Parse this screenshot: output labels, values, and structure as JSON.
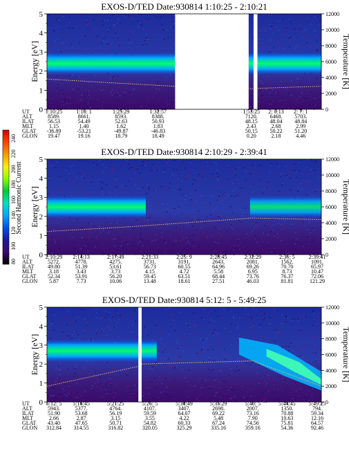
{
  "colorbar": {
    "label": "Second Harmonic Current",
    "ticks": [
      "240",
      "220",
      "200",
      "180",
      "160",
      "140",
      "120",
      "100",
      "80"
    ],
    "colors": [
      "#d60000",
      "#ff4400",
      "#ff9900",
      "#ffee00",
      "#88ff00",
      "#00cc33",
      "#00e0c0",
      "#00a8ff",
      "#0050f0",
      "#1a1aa0",
      "#3a0a6a",
      "#000000"
    ]
  },
  "chart_data": [
    {
      "type": "heatmap",
      "title": "EXOS-D/TED   Date:930814   1:10:25 - 2:10:21",
      "ylabel": "Energy [eV]",
      "ylabel_right": "Temperature [K]",
      "ylim": [
        0,
        5
      ],
      "ylim_right": [
        0,
        12000
      ],
      "yticks": [
        "0",
        "1",
        "2",
        "3",
        "4",
        "5"
      ],
      "yticks_right": [
        "0",
        "2000",
        "4000",
        "6000",
        "8000",
        "10000",
        "12000"
      ],
      "gaps": [
        [
          0.467,
          0.735
        ],
        [
          0.753,
          0.767
        ]
      ],
      "band": {
        "center_ev": 2.4,
        "width_ev": 0.6,
        "intensity": 160
      },
      "temperature_trace": {
        "x": [
          0,
          0.25,
          0.467,
          0.735,
          1.0
        ],
        "t_k": [
          3800,
          3300,
          2900,
          2600,
          2900
        ]
      },
      "ephemeris": {
        "row_labels": [
          "UT",
          "ALT",
          "ILAT",
          "MLT",
          "GLAT",
          "GLON"
        ],
        "columns": [
          [
            "1:10:25",
            "8589.",
            "56.53",
            "1.15",
            "-36.89",
            "19.47"
          ],
          [
            "1:18: 1",
            "8661.",
            "54.49",
            "1.40",
            "-53.21",
            "19.16"
          ],
          [
            "1:25:29",
            "8593.",
            "52.63",
            "1.62",
            "-49.87",
            "18.79"
          ],
          [
            "1:32:57",
            "8388.",
            "50.93",
            "1.83",
            "-46.83",
            "18.49"
          ],
          [
            "1:53:25",
            "7120.",
            "48.15",
            "2.43",
            "50.15",
            "0.20"
          ],
          [
            "2: 0:13",
            "6468.",
            "48.04",
            "2.68",
            "50.22",
            "2.18"
          ],
          [
            "2: 7: 1",
            "5703.",
            "48.84",
            "2.99",
            "51.20",
            "4.46"
          ]
        ]
      }
    },
    {
      "type": "heatmap",
      "title": "EXOS-D/TED   Date:930814   2:10:29 - 2:39:41",
      "ylabel": "Energy [eV]",
      "ylabel_right": "Temperature [K]",
      "ylim": [
        0,
        5
      ],
      "ylim_right": [
        0,
        12000
      ],
      "yticks": [
        "0",
        "1",
        "2",
        "3",
        "4",
        "5"
      ],
      "yticks_right": [
        "0",
        "2000",
        "4000",
        "6000",
        "8000",
        "10000",
        "12000"
      ],
      "gaps": [],
      "band": {
        "center_ev": 2.5,
        "width_ev": 0.6,
        "intensity": 160
      },
      "temperature_trace": {
        "x": [
          0,
          0.3,
          0.75,
          1.0
        ],
        "t_k": [
          2900,
          3500,
          4600,
          4400
        ]
      },
      "ephemeris": {
        "row_labels": [
          "UT",
          "ALT",
          "ILAT",
          "MLT",
          "GLAT",
          "GLON"
        ],
        "columns": [
          [
            "2:10:29",
            "5272.",
            "49.80",
            "3.18",
            "52.34",
            "5.87"
          ],
          [
            "2:14:13",
            "4778.",
            "51.39",
            "3.43",
            "53.91",
            "7.73"
          ],
          [
            "2:17:49",
            "4275.",
            "53.61",
            "3.73",
            "56.20",
            "10.06"
          ],
          [
            "2:21:33",
            "3731.",
            "56.73",
            "4.15",
            "59.45",
            "13.48"
          ],
          [
            "2:25: 9",
            "3191.",
            "60.55",
            "4.72",
            "63.51",
            "18.61"
          ],
          [
            "2:28:45",
            "2643.",
            "64.96",
            "5.58",
            "68.44",
            "27.51"
          ],
          [
            "2:32:29",
            "2081.",
            "69.26",
            "6.95",
            "73.76",
            "46.03"
          ],
          [
            "2:36: 5",
            "1562.",
            "70.70",
            "8.73",
            "76.37",
            "81.81"
          ],
          [
            "2:39:41",
            "1091.",
            "65.97",
            "10.47",
            "72.06",
            "121.29"
          ]
        ]
      }
    },
    {
      "type": "heatmap",
      "title": "EXOS-D/TED   Date:930814   5:12: 5 - 5:49:25",
      "ylabel": "Energy [eV]",
      "ylabel_right": "Temperature [K]",
      "ylim": [
        0,
        5
      ],
      "ylim_right": [
        0,
        12000
      ],
      "yticks": [
        "0",
        "1",
        "2",
        "3",
        "4",
        "5"
      ],
      "yticks_right": [
        "0",
        "2000",
        "4000",
        "6000",
        "8000",
        "10000",
        "12000"
      ],
      "gaps": [
        [
          0.333,
          0.345
        ]
      ],
      "band": {
        "center_ev": 2.7,
        "width_ev": 0.6,
        "intensity": 150
      },
      "temperature_trace": {
        "x": [
          0,
          0.333,
          0.345,
          0.75,
          1.0
        ],
        "t_k": [
          2000,
          4500,
          4800,
          5200,
          2000
        ]
      },
      "ephemeris": {
        "row_labels": [
          "UT",
          "ALT",
          "ILAT",
          "MLT",
          "GLAT",
          "GLON"
        ],
        "columns": [
          [
            "5:12: 5",
            "5943.",
            "51.90",
            "2.66",
            "43.40",
            "312.84"
          ],
          [
            "5:16:45",
            "5377.",
            "53.68",
            "2.87",
            "47.65",
            "314.55"
          ],
          [
            "5:21:25",
            "4764.",
            "56.19",
            "3.15",
            "50.71",
            "316.82"
          ],
          [
            "5:26: 5",
            "4107.",
            "59.59",
            "3.55",
            "54.82",
            "320.05"
          ],
          [
            "5:30:49",
            "3407.",
            "64.07",
            "4.22",
            "60.33",
            "325.29"
          ],
          [
            "5:35:29",
            "2698.",
            "69.22",
            "5.48",
            "67.24",
            "335.16"
          ],
          [
            "5:40: 5",
            "2007.",
            "73.16",
            "7.90",
            "74.56",
            "359.16"
          ],
          [
            "5:44:45",
            "1350.",
            "70.88",
            "10.63",
            "75.81",
            "54.36"
          ],
          [
            "5:49:25",
            "794.",
            "59.34",
            "12.16",
            "64.57",
            "92.46"
          ]
        ]
      }
    }
  ]
}
